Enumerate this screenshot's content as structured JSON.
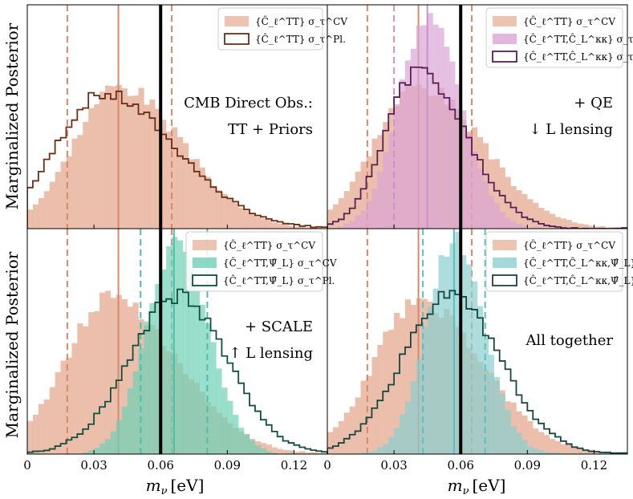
{
  "figure": {
    "ylabel": "Marginalized Posterior",
    "xlabel": "m_ν [eV]",
    "xlabel_symbol": "m",
    "xlabel_sub": "ν",
    "xlabel_unit": "[eV]",
    "colors": {
      "tt_cv": "#e8b49d",
      "tt_line": "#d9886a",
      "tt_pl": "#6b2f16",
      "kk_cv": "#dca5d5",
      "kk_line": "#c990cd",
      "kk_pl": "#5a1f57",
      "psi_cv": "#6fd0b7",
      "psi_line": "#4cc0a8",
      "psi_pl": "#114f3e",
      "all_cv": "#8ccfce",
      "all_line": "#5bbfc4",
      "all_pl": "#17453f",
      "truth": "#000000"
    }
  },
  "chart_data": [
    {
      "type": "histogram",
      "panel": "top-left",
      "annotation": [
        "CMB Direct Obs.:",
        "TT + Priors"
      ],
      "xlim": [
        0,
        0.135
      ],
      "xticks": [
        "0",
        "0.03",
        "0.06",
        "0.09",
        "0.12"
      ],
      "xtick_values": [
        0,
        0.03,
        0.06,
        0.09,
        0.12
      ],
      "truth": 0.06,
      "legend": [
        "{Ĉ_ℓ^TT} σ_τ^CV",
        "{Ĉ_ℓ^TT} σ_τ^Pl."
      ],
      "series": [
        {
          "name": "{Ĉ_ℓ^TT} σ_τ^CV",
          "style": "filled",
          "color_key": "tt_cv",
          "mean": 0.041,
          "sd": 0.024,
          "skew": 0.5,
          "noise": 0.06,
          "seed": 3,
          "height": 0.64,
          "lines": {
            "center": 0.041,
            "low": 0.018,
            "high": 0.065,
            "color_key": "tt_line"
          }
        },
        {
          "name": "{Ĉ_ℓ^TT} σ_τ^Pl.",
          "style": "step",
          "color_key": "tt_pl",
          "mean": 0.034,
          "sd": 0.027,
          "skew": 0.6,
          "noise": 0.05,
          "seed": 7,
          "height": 0.6
        }
      ]
    },
    {
      "type": "histogram",
      "panel": "top-right",
      "annotation": [
        "+ QE",
        "↓ L lensing"
      ],
      "xlim": [
        0,
        0.135
      ],
      "xticks": [
        "0",
        "0.03",
        "0.06",
        "0.09",
        "0.12"
      ],
      "xtick_values": [
        0,
        0.03,
        0.06,
        0.09,
        0.12
      ],
      "truth": 0.06,
      "legend": [
        "{Ĉ_ℓ^TT} σ_τ^CV",
        "{Ĉ_ℓ^TT,Ĉ_L^κκ} σ_τ^CV",
        "{Ĉ_ℓ^TT,Ĉ_L^κκ} σ_τ^Pl."
      ],
      "series": [
        {
          "name": "{Ĉ_ℓ^TT} σ_τ^CV",
          "style": "filled",
          "color_key": "tt_cv",
          "mean": 0.041,
          "sd": 0.024,
          "skew": 0.5,
          "noise": 0.06,
          "seed": 3,
          "height": 0.64,
          "lines": {
            "center": 0.041,
            "low": 0.018,
            "high": 0.065,
            "color_key": "tt_line"
          }
        },
        {
          "name": "{Ĉ_ℓ^TT,Ĉ_L^κκ} σ_τ^CV",
          "style": "filled",
          "color_key": "kk_cv",
          "mean": 0.045,
          "sd": 0.014,
          "skew": 0.2,
          "noise": 0.05,
          "seed": 11,
          "height": 0.95,
          "lines": {
            "center": 0.045,
            "low": 0.03,
            "high": 0.06,
            "color_key": "kk_line"
          }
        },
        {
          "name": "{Ĉ_ℓ^TT,Ĉ_L^κκ} σ_τ^Pl.",
          "style": "step",
          "color_key": "kk_pl",
          "mean": 0.041,
          "sd": 0.018,
          "skew": 0.5,
          "noise": 0.05,
          "seed": 5,
          "height": 0.7
        }
      ]
    },
    {
      "type": "histogram",
      "panel": "bottom-left",
      "annotation": [
        "+ SCALE",
        "↑ L lensing"
      ],
      "xlim": [
        0,
        0.135
      ],
      "xticks": [
        "0",
        "0.03",
        "0.06",
        "0.09",
        "0.12"
      ],
      "xtick_values": [
        0,
        0.03,
        0.06,
        0.09,
        0.12
      ],
      "truth": 0.06,
      "legend": [
        "{Ĉ_ℓ^TT} σ_τ^CV",
        "{Ĉ_ℓ^TT,Ψ̂_L} σ_τ^CV",
        "{Ĉ_ℓ^TT,Ψ̂_L} σ_τ^Pl."
      ],
      "series": [
        {
          "name": "{Ĉ_ℓ^TT} σ_τ^CV",
          "style": "filled",
          "color_key": "tt_cv",
          "mean": 0.038,
          "sd": 0.025,
          "skew": 0.5,
          "noise": 0.06,
          "seed": 13,
          "height": 0.7,
          "lines": {
            "center": 0.041,
            "low": 0.018,
            "high": 0.065,
            "color_key": "tt_line"
          }
        },
        {
          "name": "{Ĉ_ℓ^TT,Ψ̂_L} σ_τ^CV",
          "style": "filled",
          "color_key": "psi_cv",
          "mean": 0.067,
          "sd": 0.014,
          "skew": 0.1,
          "noise": 0.04,
          "seed": 17,
          "height": 0.93,
          "lines": {
            "center": 0.066,
            "low": 0.051,
            "high": 0.081,
            "color_key": "psi_line"
          }
        },
        {
          "name": "{Ĉ_ℓ^TT,Ψ̂_L} σ_τ^Pl.",
          "style": "step",
          "color_key": "psi_pl",
          "mean": 0.068,
          "sd": 0.022,
          "skew": 0.0,
          "noise": 0.05,
          "seed": 19,
          "height": 0.7
        }
      ]
    },
    {
      "type": "histogram",
      "panel": "bottom-right",
      "annotation": [
        "All together"
      ],
      "xlim": [
        0,
        0.135
      ],
      "xticks": [
        "0",
        "0.03",
        "0.06",
        "0.09",
        "0.12"
      ],
      "xtick_values": [
        0,
        0.03,
        0.06,
        0.09,
        0.12
      ],
      "truth": 0.06,
      "legend": [
        "{Ĉ_ℓ^TT} σ_τ^CV",
        "{Ĉ_ℓ^TT,Ĉ_L^κκ,Ψ̂_L} σ_τ^CV",
        "{Ĉ_ℓ^TT,Ĉ_L^κκ,Ψ̂_L} σ_τ^Pl."
      ],
      "series": [
        {
          "name": "{Ĉ_ℓ^TT} σ_τ^CV",
          "style": "filled",
          "color_key": "tt_cv",
          "mean": 0.041,
          "sd": 0.024,
          "skew": 0.5,
          "noise": 0.06,
          "seed": 23,
          "height": 0.68,
          "lines": {
            "center": 0.041,
            "low": 0.018,
            "high": 0.065,
            "color_key": "tt_line"
          }
        },
        {
          "name": "{Ĉ_ℓ^TT,Ĉ_L^κκ,Ψ̂_L} σ_τ^CV",
          "style": "filled",
          "color_key": "all_cv",
          "mean": 0.057,
          "sd": 0.013,
          "skew": 0.1,
          "noise": 0.05,
          "seed": 29,
          "height": 0.95,
          "lines": {
            "center": 0.057,
            "low": 0.043,
            "high": 0.071,
            "color_key": "all_line"
          }
        },
        {
          "name": "{Ĉ_ℓ^TT,Ĉ_L^κκ,Ψ̂_L} σ_τ^Pl.",
          "style": "step",
          "color_key": "all_pl",
          "mean": 0.055,
          "sd": 0.022,
          "skew": 0.1,
          "noise": 0.05,
          "seed": 31,
          "height": 0.7
        }
      ]
    }
  ]
}
